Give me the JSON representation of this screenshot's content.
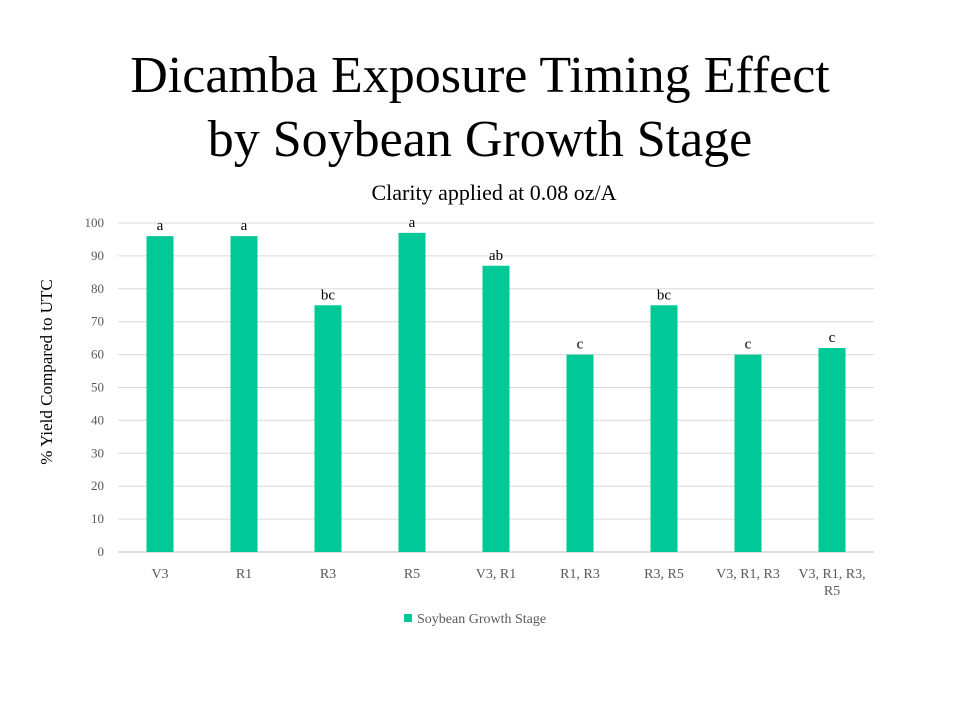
{
  "title_lines": [
    "Dicamba Exposure Timing Effect",
    "by Soybean Growth Stage"
  ],
  "chart_data": {
    "type": "bar",
    "subtitle": "Clarity applied at 0.08 oz/A",
    "ylabel": "% Yield Compared to UTC",
    "xlabel": "",
    "ylim": [
      0,
      100
    ],
    "yticks": [
      0,
      10,
      20,
      30,
      40,
      50,
      60,
      70,
      80,
      90,
      100
    ],
    "grid": true,
    "legend_position": "bottom",
    "categories": [
      "V3",
      "R1",
      "R3",
      "R5",
      "V3, R1",
      "R1, R3",
      "R3, R5",
      "V3, R1, R3",
      "V3, R1, R3, R5"
    ],
    "series": [
      {
        "name": "Soybean Growth Stage",
        "color": "#00c896",
        "values": [
          96,
          96,
          75,
          97,
          87,
          60,
          75,
          60,
          62
        ],
        "data_labels": [
          "a",
          "a",
          "bc",
          "a",
          "ab",
          "c",
          "bc",
          "c",
          "c"
        ]
      }
    ]
  }
}
